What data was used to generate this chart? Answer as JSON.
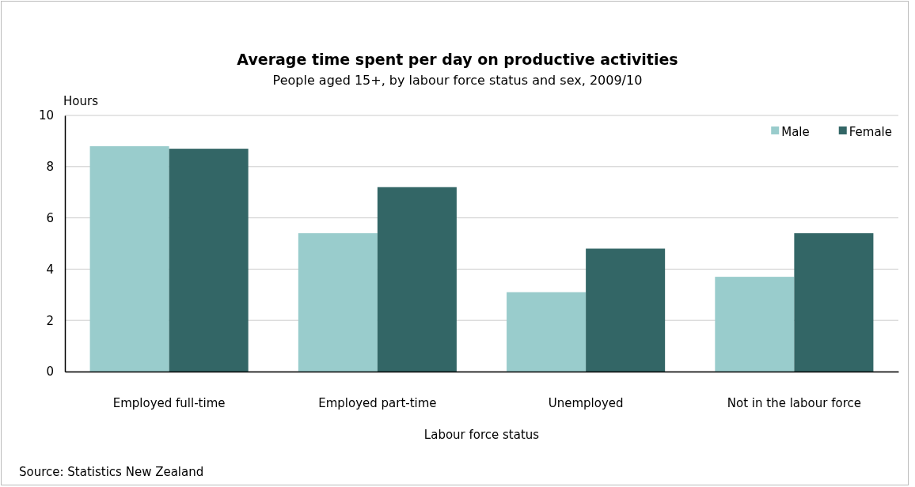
{
  "chart_data": {
    "type": "bar",
    "title": "Average time spent per day on productive activities",
    "subtitle": "People aged 15+, by labour force status and sex, 2009/10",
    "xlabel": "Labour force status",
    "ylabel": "Hours",
    "categories": [
      "Employed full-time",
      "Employed part-time",
      "Unemployed",
      "Not in the labour force"
    ],
    "series": [
      {
        "name": "Male",
        "color": "#99cccc",
        "values": [
          8.8,
          5.4,
          3.1,
          3.7
        ]
      },
      {
        "name": "Female",
        "color": "#336666",
        "values": [
          8.7,
          7.2,
          4.8,
          5.4
        ]
      }
    ],
    "ylim": [
      0,
      10
    ],
    "yticks": [
      0,
      2,
      4,
      6,
      8,
      10
    ],
    "grid": "y",
    "legend": "top right",
    "annotations": [
      "Source: Statistics New Zealand"
    ]
  }
}
